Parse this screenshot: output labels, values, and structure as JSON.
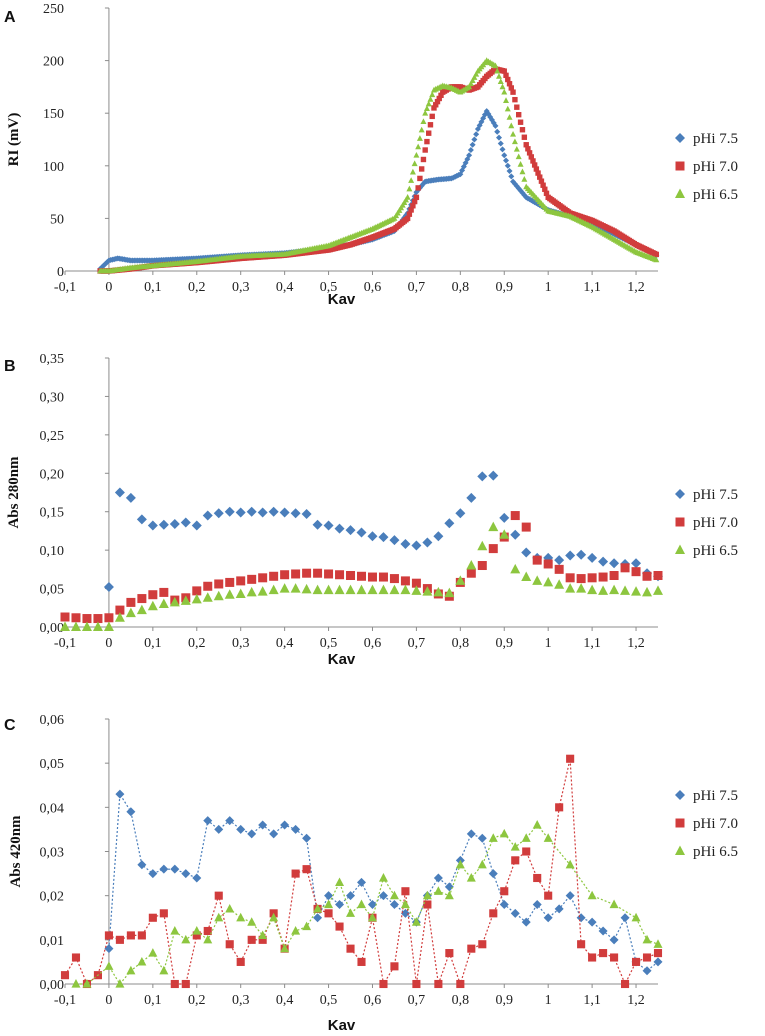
{
  "colors": {
    "pHi75": "#4a7ebb",
    "pHi70": "#d13c3c",
    "pHi65": "#8dc63f",
    "axis": "#8c8c8c"
  },
  "chart_data": [
    {
      "panel": "A",
      "type": "scatter",
      "title": "",
      "xlabel": "Kav",
      "ylabel": "RI (mV)",
      "xlim": [
        -0.1,
        1.25
      ],
      "ylim": [
        0,
        250
      ],
      "x_ticks": [
        "-0,1",
        "0",
        "0,1",
        "0,2",
        "0,3",
        "0,4",
        "0,5",
        "0,6",
        "0,7",
        "0,8",
        "0,9",
        "1",
        "1,1",
        "1,2"
      ],
      "y_ticks": [
        "0",
        "50",
        "100",
        "150",
        "200",
        "250"
      ],
      "legend": "right",
      "series": [
        {
          "name": "pHi 7.5",
          "marker": "diamond",
          "x": [
            -0.02,
            0,
            0.02,
            0.05,
            0.1,
            0.2,
            0.3,
            0.4,
            0.5,
            0.55,
            0.6,
            0.65,
            0.68,
            0.7,
            0.72,
            0.75,
            0.78,
            0.8,
            0.82,
            0.84,
            0.86,
            0.88,
            0.9,
            0.92,
            0.95,
            1.0,
            1.05,
            1.1,
            1.15,
            1.2,
            1.25
          ],
          "y": [
            2,
            10,
            12,
            10,
            10,
            12,
            15,
            17,
            22,
            25,
            30,
            38,
            55,
            75,
            85,
            87,
            88,
            92,
            110,
            135,
            152,
            138,
            110,
            85,
            70,
            58,
            52,
            45,
            35,
            25,
            14
          ]
        },
        {
          "name": "pHi 7.0",
          "marker": "square",
          "x": [
            -0.02,
            0,
            0.05,
            0.1,
            0.2,
            0.3,
            0.4,
            0.5,
            0.55,
            0.6,
            0.65,
            0.68,
            0.7,
            0.72,
            0.74,
            0.76,
            0.78,
            0.8,
            0.82,
            0.84,
            0.86,
            0.88,
            0.9,
            0.92,
            0.95,
            1.0,
            1.05,
            1.1,
            1.15,
            1.2,
            1.25
          ],
          "y": [
            0,
            0,
            2,
            5,
            8,
            12,
            15,
            20,
            25,
            32,
            40,
            50,
            70,
            115,
            155,
            170,
            175,
            175,
            172,
            175,
            185,
            192,
            190,
            170,
            120,
            70,
            55,
            48,
            38,
            25,
            15
          ]
        },
        {
          "name": "pHi 6.5",
          "marker": "triangle",
          "x": [
            -0.02,
            0,
            0.05,
            0.1,
            0.2,
            0.3,
            0.4,
            0.5,
            0.55,
            0.6,
            0.65,
            0.68,
            0.7,
            0.72,
            0.74,
            0.76,
            0.78,
            0.8,
            0.82,
            0.84,
            0.86,
            0.88,
            0.9,
            0.92,
            0.95,
            1.0,
            1.05,
            1.1,
            1.15,
            1.2,
            1.25
          ],
          "y": [
            0,
            0,
            3,
            5,
            9,
            14,
            16,
            24,
            32,
            40,
            50,
            70,
            110,
            150,
            172,
            176,
            174,
            170,
            175,
            190,
            200,
            195,
            170,
            130,
            80,
            57,
            52,
            42,
            30,
            18,
            10
          ]
        }
      ]
    },
    {
      "panel": "B",
      "type": "scatter",
      "title": "",
      "xlabel": "Kav",
      "ylabel": "Abs 280nm",
      "xlim": [
        -0.1,
        1.25
      ],
      "ylim": [
        0,
        0.35
      ],
      "x_ticks": [
        "-0,1",
        "0",
        "0,1",
        "0,2",
        "0,3",
        "0,4",
        "0,5",
        "0,6",
        "0,7",
        "0,8",
        "0,9",
        "1",
        "1,1",
        "1,2"
      ],
      "y_ticks": [
        "0,00",
        "0,05",
        "0,10",
        "0,15",
        "0,20",
        "0,25",
        "0,30",
        "0,35"
      ],
      "legend": "right",
      "series": [
        {
          "name": "pHi 7.5",
          "marker": "diamond",
          "x": [
            0.0,
            0.025,
            0.05,
            0.075,
            0.1,
            0.125,
            0.15,
            0.175,
            0.2,
            0.225,
            0.25,
            0.275,
            0.3,
            0.325,
            0.35,
            0.375,
            0.4,
            0.425,
            0.45,
            0.475,
            0.5,
            0.525,
            0.55,
            0.575,
            0.6,
            0.625,
            0.65,
            0.675,
            0.7,
            0.725,
            0.75,
            0.775,
            0.8,
            0.825,
            0.85,
            0.875,
            0.9,
            0.925,
            0.95,
            0.975,
            1.0,
            1.025,
            1.05,
            1.075,
            1.1,
            1.125,
            1.15,
            1.175,
            1.2,
            1.225,
            1.25
          ],
          "y": [
            0.052,
            0.175,
            0.168,
            0.14,
            0.132,
            0.133,
            0.134,
            0.136,
            0.132,
            0.145,
            0.148,
            0.15,
            0.149,
            0.15,
            0.149,
            0.15,
            0.149,
            0.148,
            0.147,
            0.133,
            0.132,
            0.128,
            0.126,
            0.123,
            0.118,
            0.117,
            0.113,
            0.108,
            0.106,
            0.11,
            0.118,
            0.135,
            0.148,
            0.168,
            0.196,
            0.197,
            0.142,
            0.12,
            0.097,
            0.09,
            0.09,
            0.087,
            0.093,
            0.094,
            0.09,
            0.085,
            0.083,
            0.082,
            0.083,
            0.07,
            0.066
          ]
        },
        {
          "name": "pHi 7.0",
          "marker": "square",
          "x": [
            -0.1,
            -0.075,
            -0.05,
            -0.025,
            0.0,
            0.025,
            0.05,
            0.075,
            0.1,
            0.125,
            0.15,
            0.175,
            0.2,
            0.225,
            0.25,
            0.275,
            0.3,
            0.325,
            0.35,
            0.375,
            0.4,
            0.425,
            0.45,
            0.475,
            0.5,
            0.525,
            0.55,
            0.575,
            0.6,
            0.625,
            0.65,
            0.675,
            0.7,
            0.725,
            0.75,
            0.775,
            0.8,
            0.825,
            0.85,
            0.875,
            0.9,
            0.925,
            0.95,
            0.975,
            1.0,
            1.025,
            1.05,
            1.075,
            1.1,
            1.125,
            1.15,
            1.175,
            1.2,
            1.225,
            1.25
          ],
          "y": [
            0.013,
            0.012,
            0.011,
            0.011,
            0.012,
            0.022,
            0.032,
            0.037,
            0.042,
            0.045,
            0.035,
            0.038,
            0.047,
            0.053,
            0.056,
            0.058,
            0.06,
            0.062,
            0.064,
            0.066,
            0.068,
            0.069,
            0.07,
            0.07,
            0.069,
            0.068,
            0.067,
            0.066,
            0.065,
            0.065,
            0.063,
            0.06,
            0.057,
            0.05,
            0.043,
            0.04,
            0.058,
            0.07,
            0.08,
            0.102,
            0.117,
            0.145,
            0.13,
            0.087,
            0.082,
            0.075,
            0.064,
            0.063,
            0.064,
            0.065,
            0.067,
            0.077,
            0.072,
            0.066,
            0.067
          ]
        },
        {
          "name": "pHi 6.5",
          "marker": "triangle",
          "x": [
            -0.1,
            -0.075,
            -0.05,
            -0.025,
            0.0,
            0.025,
            0.05,
            0.075,
            0.1,
            0.125,
            0.15,
            0.175,
            0.2,
            0.225,
            0.25,
            0.275,
            0.3,
            0.325,
            0.35,
            0.375,
            0.4,
            0.425,
            0.45,
            0.475,
            0.5,
            0.525,
            0.55,
            0.575,
            0.6,
            0.625,
            0.65,
            0.675,
            0.7,
            0.725,
            0.75,
            0.775,
            0.8,
            0.825,
            0.85,
            0.875,
            0.9,
            0.925,
            0.95,
            0.975,
            1.0,
            1.025,
            1.05,
            1.075,
            1.1,
            1.125,
            1.15,
            1.175,
            1.2,
            1.225,
            1.25
          ],
          "y": [
            0.0,
            0.0,
            0.0,
            0.0,
            0.0,
            0.012,
            0.018,
            0.022,
            0.027,
            0.03,
            0.032,
            0.034,
            0.036,
            0.038,
            0.04,
            0.042,
            0.043,
            0.045,
            0.046,
            0.048,
            0.05,
            0.05,
            0.049,
            0.048,
            0.048,
            0.048,
            0.048,
            0.048,
            0.048,
            0.048,
            0.048,
            0.048,
            0.047,
            0.046,
            0.045,
            0.044,
            0.06,
            0.08,
            0.105,
            0.13,
            0.12,
            0.075,
            0.065,
            0.06,
            0.058,
            0.055,
            0.05,
            0.05,
            0.048,
            0.047,
            0.048,
            0.047,
            0.046,
            0.045,
            0.047
          ]
        }
      ]
    },
    {
      "panel": "C",
      "type": "line",
      "title": "",
      "xlabel": "Kav",
      "ylabel": "Abs 420nm",
      "xlim": [
        -0.1,
        1.25
      ],
      "ylim": [
        0,
        0.06
      ],
      "x_ticks": [
        "-0,1",
        "0",
        "0,1",
        "0,2",
        "0,3",
        "0,4",
        "0,5",
        "0,6",
        "0,7",
        "0,8",
        "0,9",
        "1",
        "1,1",
        "1,2"
      ],
      "y_ticks": [
        "0,00",
        "0,01",
        "0,02",
        "0,03",
        "0,04",
        "0,05",
        "0,06"
      ],
      "legend": "right",
      "series": [
        {
          "name": "pHi 7.5",
          "marker": "diamond",
          "line": "dotted",
          "x": [
            0.0,
            0.025,
            0.05,
            0.075,
            0.1,
            0.125,
            0.15,
            0.175,
            0.2,
            0.225,
            0.25,
            0.275,
            0.3,
            0.325,
            0.35,
            0.375,
            0.4,
            0.425,
            0.45,
            0.475,
            0.5,
            0.525,
            0.55,
            0.575,
            0.6,
            0.625,
            0.65,
            0.675,
            0.7,
            0.725,
            0.75,
            0.775,
            0.8,
            0.825,
            0.85,
            0.875,
            0.9,
            0.925,
            0.95,
            0.975,
            1.0,
            1.025,
            1.05,
            1.075,
            1.1,
            1.125,
            1.15,
            1.175,
            1.2,
            1.225,
            1.25
          ],
          "y": [
            0.008,
            0.043,
            0.039,
            0.027,
            0.025,
            0.026,
            0.026,
            0.025,
            0.024,
            0.037,
            0.035,
            0.037,
            0.035,
            0.034,
            0.036,
            0.034,
            0.036,
            0.035,
            0.033,
            0.015,
            0.02,
            0.018,
            0.02,
            0.023,
            0.018,
            0.02,
            0.018,
            0.016,
            0.014,
            0.02,
            0.024,
            0.022,
            0.028,
            0.034,
            0.033,
            0.025,
            0.018,
            0.016,
            0.014,
            0.018,
            0.015,
            0.017,
            0.02,
            0.015,
            0.014,
            0.012,
            0.01,
            0.015,
            0.005,
            0.003,
            0.005
          ]
        },
        {
          "name": "pHi 7.0",
          "marker": "square",
          "line": "dotted",
          "x": [
            -0.1,
            -0.075,
            -0.05,
            -0.025,
            0.0,
            0.025,
            0.05,
            0.075,
            0.1,
            0.125,
            0.15,
            0.175,
            0.2,
            0.225,
            0.25,
            0.275,
            0.3,
            0.325,
            0.35,
            0.375,
            0.4,
            0.425,
            0.45,
            0.475,
            0.5,
            0.525,
            0.55,
            0.575,
            0.6,
            0.625,
            0.65,
            0.675,
            0.7,
            0.725,
            0.75,
            0.775,
            0.8,
            0.825,
            0.85,
            0.875,
            0.9,
            0.925,
            0.95,
            0.975,
            1.0,
            1.025,
            1.05,
            1.075,
            1.1,
            1.125,
            1.15,
            1.175,
            1.2,
            1.225,
            1.25
          ],
          "y": [
            0.002,
            0.006,
            0.0,
            0.002,
            0.011,
            0.01,
            0.011,
            0.011,
            0.015,
            0.016,
            0.0,
            0.0,
            0.011,
            0.012,
            0.02,
            0.009,
            0.005,
            0.01,
            0.01,
            0.016,
            0.008,
            0.025,
            0.026,
            0.017,
            0.016,
            0.013,
            0.008,
            0.005,
            0.015,
            0.0,
            0.004,
            0.021,
            0.0,
            0.018,
            0.0,
            0.007,
            0.0,
            0.008,
            0.009,
            0.016,
            0.021,
            0.028,
            0.03,
            0.024,
            0.02,
            0.04,
            0.051,
            0.009,
            0.006,
            0.007,
            0.006,
            0.0,
            0.005,
            0.006,
            0.007
          ]
        },
        {
          "name": "pHi 6.5",
          "marker": "triangle",
          "line": "dotted",
          "x": [
            -0.075,
            -0.05,
            0.0,
            0.025,
            0.05,
            0.075,
            0.1,
            0.125,
            0.15,
            0.175,
            0.2,
            0.225,
            0.25,
            0.275,
            0.3,
            0.325,
            0.35,
            0.375,
            0.4,
            0.425,
            0.45,
            0.475,
            0.5,
            0.525,
            0.55,
            0.575,
            0.6,
            0.625,
            0.65,
            0.675,
            0.7,
            0.725,
            0.75,
            0.775,
            0.8,
            0.825,
            0.85,
            0.875,
            0.9,
            0.925,
            0.95,
            0.975,
            1.0,
            1.05,
            1.1,
            1.15,
            1.2,
            1.225,
            1.25
          ],
          "y": [
            0.0,
            0.0,
            0.004,
            0.0,
            0.003,
            0.005,
            0.007,
            0.003,
            0.012,
            0.01,
            0.012,
            0.01,
            0.015,
            0.017,
            0.015,
            0.014,
            0.011,
            0.015,
            0.008,
            0.012,
            0.013,
            0.017,
            0.018,
            0.023,
            0.016,
            0.018,
            0.015,
            0.024,
            0.02,
            0.018,
            0.014,
            0.02,
            0.021,
            0.02,
            0.027,
            0.024,
            0.027,
            0.033,
            0.034,
            0.031,
            0.033,
            0.036,
            0.033,
            0.027,
            0.02,
            0.018,
            0.015,
            0.01,
            0.009
          ]
        }
      ]
    }
  ]
}
